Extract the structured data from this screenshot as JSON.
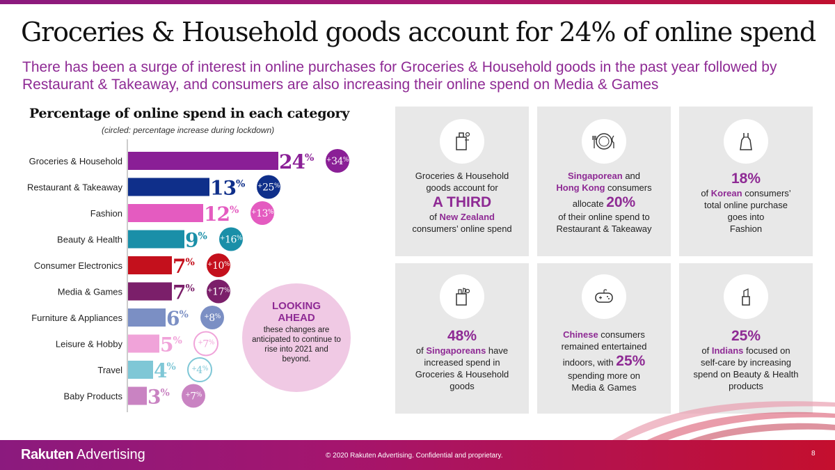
{
  "title": "Groceries & Household goods account for 24% of online spend",
  "subtitle": "There has been a surge of interest in online purchases for Groceries & Household goods in the past year followed by Restaurant & Takeaway, and consumers are also increasing their online spend on Media & Games",
  "chart_data": {
    "type": "bar",
    "orientation": "horizontal",
    "title": "Percentage of online spend in each category",
    "note": "(circled: percentage increase during lockdown)",
    "value_suffix": "%",
    "increase_prefix": "+",
    "categories": [
      "Groceries & Household",
      "Restaurant & Takeaway",
      "Fashion",
      "Beauty & Health",
      "Consumer Electronics",
      "Media & Games",
      "Furniture & Appliances",
      "Leisure & Hobby",
      "Travel",
      "Baby Products"
    ],
    "series": [
      {
        "values": [
          24,
          13,
          12,
          9,
          7,
          7,
          6,
          5,
          4,
          3
        ]
      },
      {
        "values": [
          34,
          25,
          13,
          16,
          10,
          17,
          8,
          7,
          4,
          7
        ]
      }
    ],
    "colors": [
      "#8a1f96",
      "#0f2f8a",
      "#e45bc0",
      "#1a8fa8",
      "#c4101c",
      "#7b1f6a",
      "#7b8fc4",
      "#f0a3d9",
      "#7fc7d6",
      "#c983c2"
    ],
    "grid": false,
    "legend": "none"
  },
  "looking_ahead": {
    "title": "LOOKING AHEAD",
    "text": "these changes are anticipated to continue to rise into 2021 and beyond."
  },
  "cards": [
    {
      "icon": "shopping-bag-icon",
      "lines": [
        "Groceries & Household",
        "goods account for"
      ],
      "big": "A THIRD",
      "highlight_prefix": "of ",
      "highlight": "New Zealand",
      "tail": "consumers’ online spend"
    },
    {
      "icon": "plate-cutlery-icon",
      "highlight1": "Singaporean",
      "and": " and",
      "highlight2": "Hong Kong",
      "after": " consumers",
      "pre_big": "allocate ",
      "big": "20%",
      "lines": [
        "of their online spend to",
        "Restaurant & Takeaway"
      ]
    },
    {
      "icon": "dress-icon",
      "big": "18%",
      "pre": "of ",
      "highlight": "Korean",
      "post": " consumers’",
      "lines": [
        "total online purchase",
        "goes into",
        "Fashion"
      ]
    },
    {
      "icon": "grocery-bag-icon",
      "big": "48%",
      "pre": "of ",
      "highlight": "Singaporeans",
      "post": " have",
      "lines": [
        "increased spend in",
        "Groceries & Household",
        "goods"
      ]
    },
    {
      "icon": "game-controller-icon",
      "highlight": "Chinese",
      "post": " consumers",
      "lines": [
        "remained entertained"
      ],
      "pre_big": "indoors, with ",
      "big": "25%",
      "lines2": [
        "spending more on",
        "Media & Games"
      ]
    },
    {
      "icon": "lipstick-icon",
      "big": "25%",
      "pre": "of ",
      "highlight": "Indians",
      "post": " focused on",
      "lines": [
        "self-care by increasing",
        "spend on Beauty & Health",
        "products"
      ]
    }
  ],
  "footer": {
    "logo_bold": "Rakuten",
    "logo_rest": " Advertising",
    "copyright": "© 2020 Rakuten Advertising. Confidential and proprietary.",
    "page": "8"
  }
}
